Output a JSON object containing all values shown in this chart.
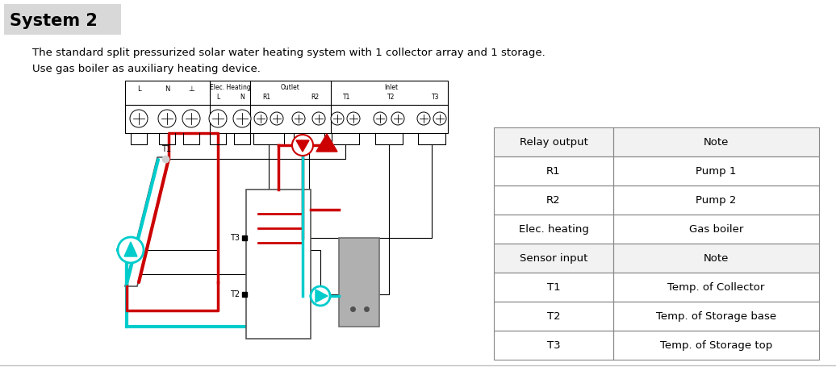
{
  "title": "System 2",
  "title_bg": "#d8d8d8",
  "description_line1": "The standard split pressurized solar water heating system with 1 collector array and 1 storage.",
  "description_line2": "Use gas boiler as auxiliary heating device.",
  "bg_color": "#ffffff",
  "table_header": [
    "Relay output",
    "Note"
  ],
  "table_rows": [
    [
      "R1",
      "Pump 1"
    ],
    [
      "R2",
      "Pump 2"
    ],
    [
      "Elec. heating",
      "Gas boiler"
    ],
    [
      "Sensor input",
      "Note"
    ],
    [
      "T1",
      "Temp. of Collector"
    ],
    [
      "T2",
      "Temp. of Storage base"
    ],
    [
      "T3",
      "Temp. of Storage top"
    ]
  ],
  "cyan_color": "#00cccc",
  "red_color": "#cc0000",
  "gray_color": "#909090",
  "light_gray": "#b8b8b8"
}
